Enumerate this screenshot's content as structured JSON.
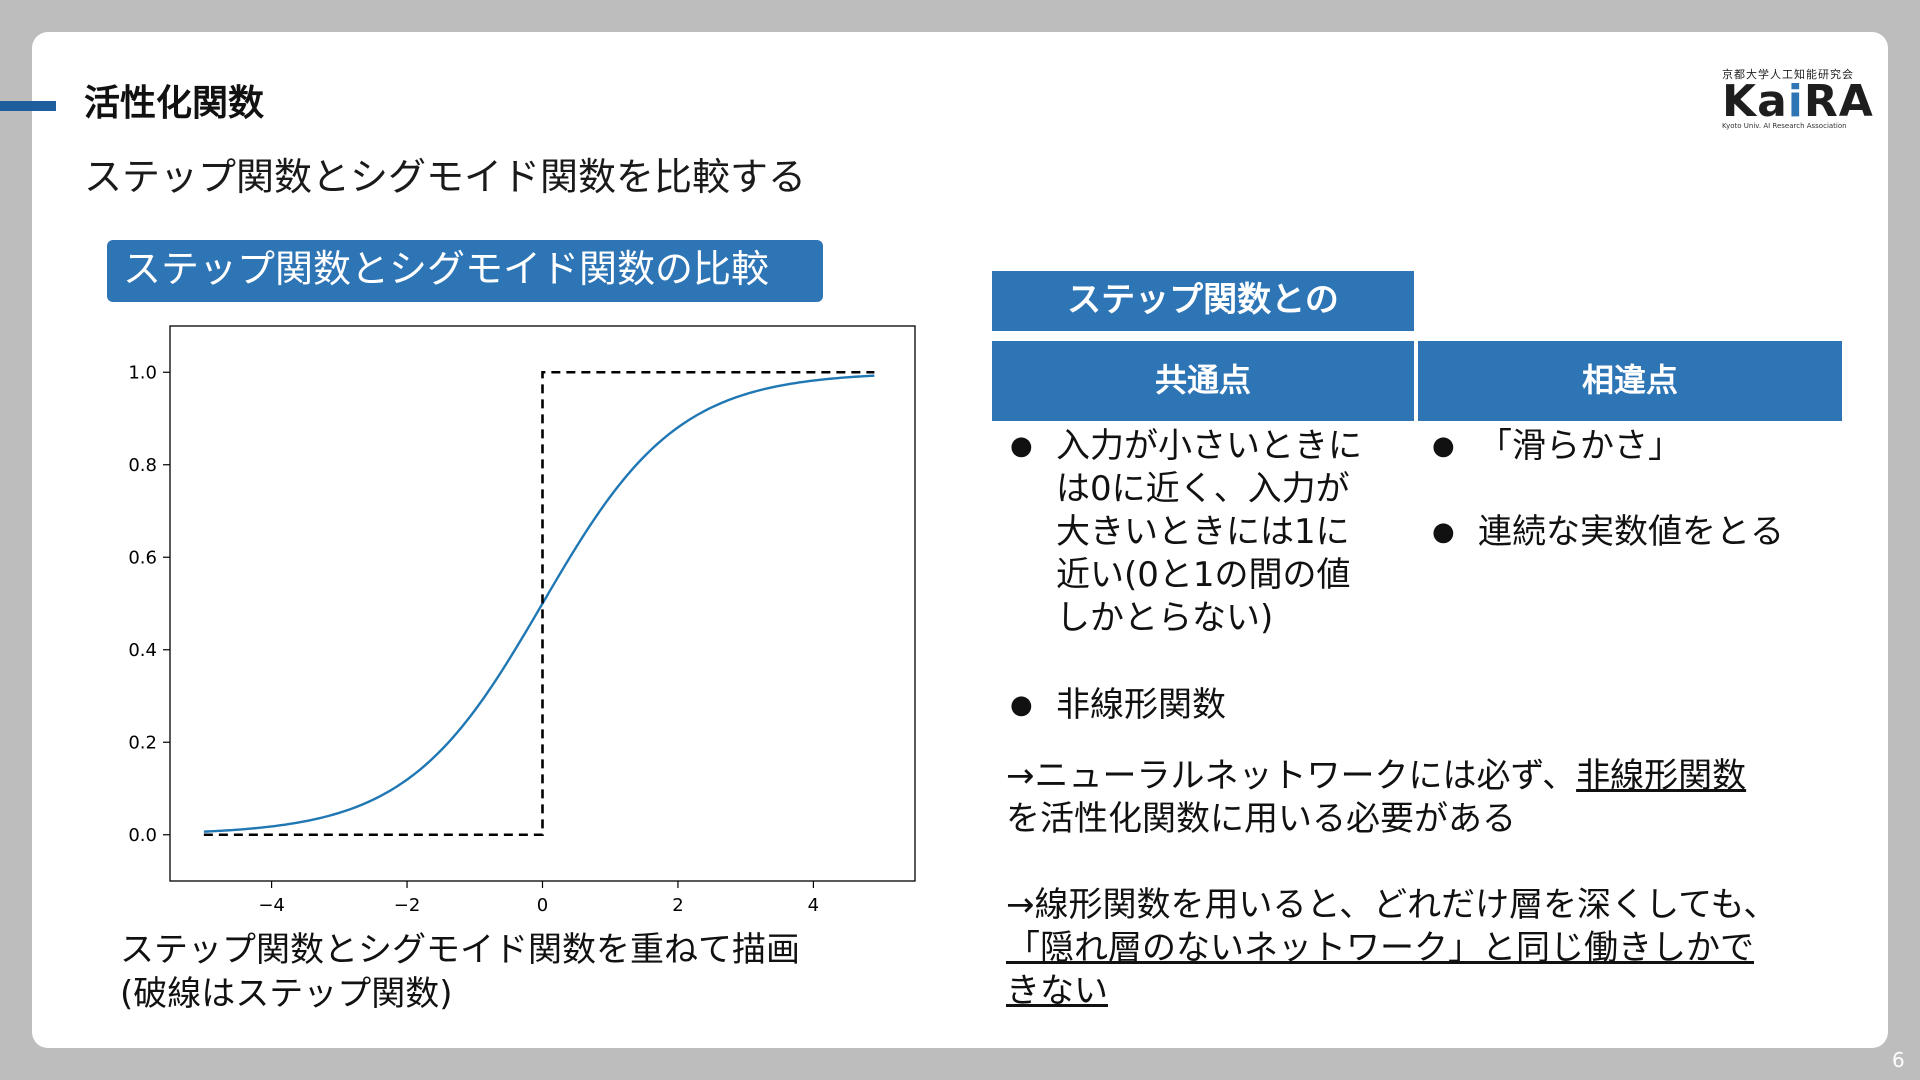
{
  "header": {
    "section_title": "活性化関数",
    "subtitle": "ステップ関数とシグモイド関数を比較する"
  },
  "logo": {
    "org": "京都大学人工知能研究会",
    "word_a": "Ka",
    "word_i": "i",
    "word_b": "RA",
    "sub": "Kyoto Univ. AI Research Association"
  },
  "chart_box_label": "ステップ関数とシグモイド関数の比較",
  "chart_data": {
    "type": "line",
    "title": "",
    "xlabel": "",
    "ylabel": "",
    "xlim": [
      -5.5,
      5.5
    ],
    "ylim": [
      -0.1,
      1.1
    ],
    "xticks": [
      -4,
      -2,
      0,
      2,
      4
    ],
    "xtick_labels": [
      "−4",
      "−2",
      "0",
      "2",
      "4"
    ],
    "yticks": [
      0.0,
      0.2,
      0.4,
      0.6,
      0.8,
      1.0
    ],
    "ytick_labels": [
      "0.0",
      "0.2",
      "0.4",
      "0.6",
      "0.8",
      "1.0"
    ],
    "grid": false,
    "series": [
      {
        "color": "#1f77b4",
        "style": "solid",
        "x": [
          -5,
          -4.5,
          -4,
          -3.5,
          -3,
          -2.5,
          -2,
          -1.5,
          -1,
          -0.5,
          0,
          0.5,
          1,
          1.5,
          2,
          2.5,
          3,
          3.5,
          4,
          4.5,
          4.9
        ],
        "y": [
          0.007,
          0.011,
          0.018,
          0.029,
          0.047,
          0.076,
          0.119,
          0.182,
          0.269,
          0.378,
          0.5,
          0.622,
          0.731,
          0.818,
          0.881,
          0.924,
          0.953,
          0.971,
          0.982,
          0.989,
          0.993
        ]
      },
      {
        "color": "#000000",
        "style": "dashed",
        "x": [
          -5,
          0,
          0,
          4.9
        ],
        "y": [
          0,
          0,
          1,
          1
        ]
      }
    ]
  },
  "chart_note": [
    "ステップ関数とシグモイド関数を重ねて描画",
    "(破線はステップ関数)"
  ],
  "table": {
    "title": "ステップ関数との",
    "col_common": "共通点",
    "col_diff": "相違点",
    "common_items": [
      [
        "入力が小さいときに",
        "は0に近く、入力が",
        "大きいときには1に",
        "近い(0と1の間の値",
        "しかとらない)"
      ],
      [
        "非線形関数"
      ]
    ],
    "diff_items": [
      "「滑らかさ」",
      "連続な実数値をとる"
    ],
    "bullet_symbol": "●"
  },
  "notes": {
    "note1_prefix": "→ニューラルネットワークには必ず、",
    "note1_underlined": "非線形関数",
    "note1_suffix": "を活性化関数に用いる必要がある",
    "note2_prefix": "→線形関数を用いると、どれだけ層を深くしても、",
    "note2_underlined_line1": "「隠れ層のないネットワーク」と同じ働きしかで",
    "note2_underlined_line2": "きない"
  },
  "page_number": "6",
  "colors": {
    "accent": "#2e75b6",
    "bar": "#1f5e9c",
    "background": "#bdbdbd"
  }
}
